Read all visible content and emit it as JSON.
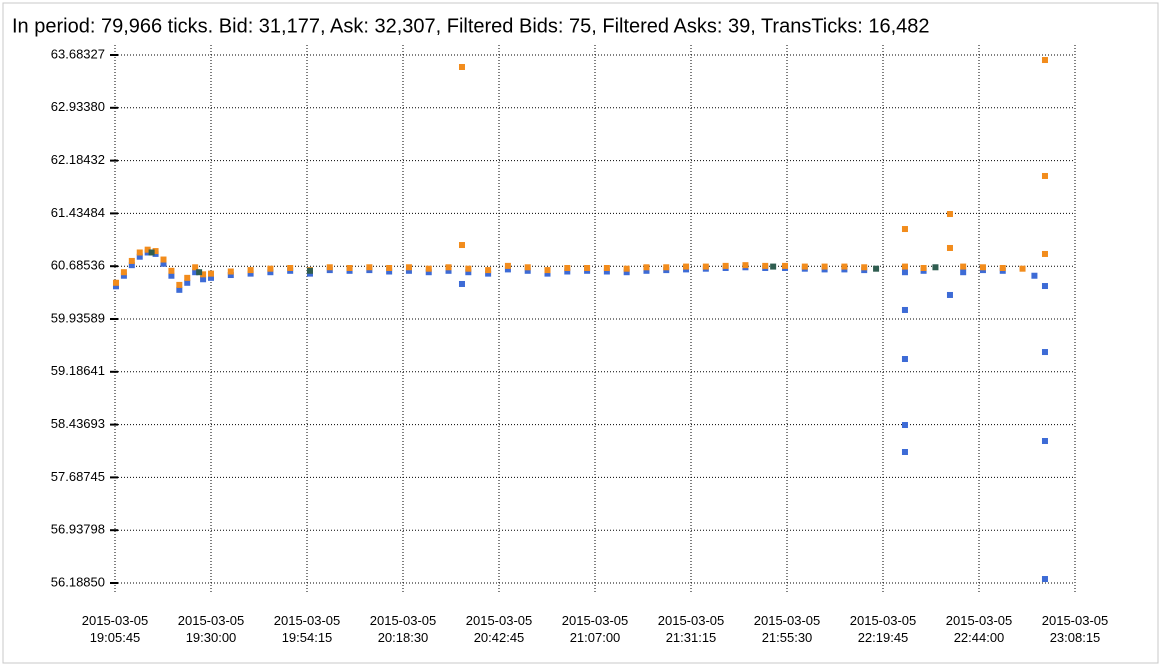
{
  "chart_data": {
    "type": "scatter",
    "title": "In period: 79,966 ticks. Bid: 31,177, Ask: 32,307, Filtered Bids: 75, Filtered Asks: 39, TransTicks: 16,482",
    "xlim": [
      "2015-03-05 19:05:45",
      "2015-03-05 23:08:15"
    ],
    "xticks": [
      "2015-03-05 19:05:45",
      "2015-03-05 19:30:00",
      "2015-03-05 19:54:15",
      "2015-03-05 20:18:30",
      "2015-03-05 20:42:45",
      "2015-03-05 21:07:00",
      "2015-03-05 21:31:15",
      "2015-03-05 21:55:30",
      "2015-03-05 22:19:45",
      "2015-03-05 22:44:00",
      "2015-03-05 23:08:15"
    ],
    "ylim": [
      56.1885,
      63.68327
    ],
    "yticks": [
      {
        "value": 56.1885,
        "label": "56.18850"
      },
      56.93798,
      57.68745,
      58.43693,
      59.18641,
      59.93589,
      60.68536,
      61.43484,
      62.18432,
      {
        "value": 62.9338,
        "label": "62.93380"
      },
      63.68327
    ],
    "grid": true,
    "series": [
      {
        "color": "#3d6bd6",
        "x": [
          "2015-03-05 19:06:00",
          "2015-03-05 19:08:00",
          "2015-03-05 19:10:00",
          "2015-03-05 19:12:00",
          "2015-03-05 19:14:00",
          "2015-03-05 19:16:00",
          "2015-03-05 19:18:00",
          "2015-03-05 19:20:00",
          "2015-03-05 19:22:00",
          "2015-03-05 19:24:00",
          "2015-03-05 19:26:00",
          "2015-03-05 19:28:00",
          "2015-03-05 19:30:00",
          "2015-03-05 19:35:00",
          "2015-03-05 19:40:00",
          "2015-03-05 19:45:00",
          "2015-03-05 19:50:00",
          "2015-03-05 19:55:00",
          "2015-03-05 20:00:00",
          "2015-03-05 20:05:00",
          "2015-03-05 20:10:00",
          "2015-03-05 20:15:00",
          "2015-03-05 20:20:00",
          "2015-03-05 20:25:00",
          "2015-03-05 20:30:00",
          "2015-03-05 20:33:24",
          "2015-03-05 20:35:00",
          "2015-03-05 20:40:00",
          "2015-03-05 20:45:00",
          "2015-03-05 20:50:00",
          "2015-03-05 20:55:00",
          "2015-03-05 21:00:00",
          "2015-03-05 21:05:00",
          "2015-03-05 21:10:00",
          "2015-03-05 21:15:00",
          "2015-03-05 21:20:00",
          "2015-03-05 21:25:00",
          "2015-03-05 21:30:00",
          "2015-03-05 21:35:00",
          "2015-03-05 21:40:00",
          "2015-03-05 21:45:00",
          "2015-03-05 21:50:00",
          "2015-03-05 21:55:00",
          "2015-03-05 22:00:00",
          "2015-03-05 22:05:00",
          "2015-03-05 22:10:00",
          "2015-03-05 22:15:00",
          "2015-03-05 22:25:18",
          "2015-03-05 22:25:18",
          "2015-03-05 22:25:18",
          "2015-03-05 22:25:18",
          "2015-03-05 22:25:18",
          "2015-03-05 22:30:00",
          "2015-03-05 22:36:40",
          "2015-03-05 22:40:00",
          "2015-03-05 22:45:00",
          "2015-03-05 22:50:00",
          "2015-03-05 22:58:00",
          "2015-03-05 23:00:40",
          "2015-03-05 23:00:40",
          "2015-03-05 23:00:40",
          "2015-03-05 23:00:40"
        ],
        "values": [
          60.4,
          60.55,
          60.7,
          60.82,
          60.88,
          60.86,
          60.72,
          60.55,
          60.35,
          60.45,
          60.6,
          60.5,
          60.52,
          60.56,
          60.58,
          60.6,
          60.62,
          60.58,
          60.63,
          60.62,
          60.63,
          60.61,
          60.62,
          60.6,
          60.62,
          60.433,
          60.6,
          60.58,
          60.64,
          60.62,
          60.58,
          60.61,
          60.62,
          60.61,
          60.6,
          60.62,
          60.63,
          60.64,
          60.65,
          60.66,
          60.67,
          60.66,
          60.66,
          60.65,
          60.64,
          60.64,
          60.63,
          60.6,
          60.064,
          59.368,
          58.431,
          58.048,
          60.62,
          60.277,
          60.6,
          60.63,
          60.62,
          60.55,
          60.404,
          59.467,
          58.204,
          56.245
        ]
      },
      {
        "color": "#f28c1c",
        "x": [
          "2015-03-05 19:06:00",
          "2015-03-05 19:08:00",
          "2015-03-05 19:10:00",
          "2015-03-05 19:12:00",
          "2015-03-05 19:14:00",
          "2015-03-05 19:16:00",
          "2015-03-05 19:18:00",
          "2015-03-05 19:20:00",
          "2015-03-05 19:22:00",
          "2015-03-05 19:24:00",
          "2015-03-05 19:26:00",
          "2015-03-05 19:28:00",
          "2015-03-05 19:30:00",
          "2015-03-05 19:35:00",
          "2015-03-05 19:40:00",
          "2015-03-05 19:45:00",
          "2015-03-05 19:50:00",
          "2015-03-05 19:55:00",
          "2015-03-05 20:00:00",
          "2015-03-05 20:05:00",
          "2015-03-05 20:10:00",
          "2015-03-05 20:15:00",
          "2015-03-05 20:20:00",
          "2015-03-05 20:25:00",
          "2015-03-05 20:30:00",
          "2015-03-05 20:33:24",
          "2015-03-05 20:33:24",
          "2015-03-05 20:35:00",
          "2015-03-05 20:40:00",
          "2015-03-05 20:45:00",
          "2015-03-05 20:50:00",
          "2015-03-05 20:55:00",
          "2015-03-05 21:00:00",
          "2015-03-05 21:05:00",
          "2015-03-05 21:10:00",
          "2015-03-05 21:15:00",
          "2015-03-05 21:20:00",
          "2015-03-05 21:25:00",
          "2015-03-05 21:30:00",
          "2015-03-05 21:35:00",
          "2015-03-05 21:40:00",
          "2015-03-05 21:45:00",
          "2015-03-05 21:50:00",
          "2015-03-05 21:55:00",
          "2015-03-05 22:00:00",
          "2015-03-05 22:05:00",
          "2015-03-05 22:10:00",
          "2015-03-05 22:15:00",
          "2015-03-05 22:25:18",
          "2015-03-05 22:25:18",
          "2015-03-05 22:30:00",
          "2015-03-05 22:36:40",
          "2015-03-05 22:36:40",
          "2015-03-05 22:40:00",
          "2015-03-05 22:45:00",
          "2015-03-05 22:50:00",
          "2015-03-05 22:55:00",
          "2015-03-05 23:00:40",
          "2015-03-05 23:00:40",
          "2015-03-05 23:00:40"
        ],
        "values": [
          60.45,
          60.6,
          60.76,
          60.88,
          60.92,
          60.9,
          60.78,
          60.62,
          60.42,
          60.52,
          60.67,
          60.57,
          60.58,
          60.61,
          60.63,
          60.65,
          60.66,
          60.63,
          60.67,
          60.66,
          60.67,
          60.66,
          60.67,
          60.65,
          60.67,
          63.513,
          60.986,
          60.65,
          60.63,
          60.69,
          60.67,
          60.63,
          60.66,
          60.66,
          60.66,
          60.65,
          60.67,
          60.67,
          60.68,
          60.68,
          60.69,
          60.7,
          60.69,
          60.69,
          60.68,
          60.68,
          60.68,
          60.67,
          61.213,
          60.68,
          60.66,
          61.426,
          60.944,
          60.68,
          60.67,
          60.66,
          60.65,
          63.612,
          61.966,
          60.859
        ]
      },
      {
        "color": "#2f5d50",
        "x": [
          "2015-03-05 19:15:00",
          "2015-03-05 19:27:00",
          "2015-03-05 19:55:00",
          "2015-03-05 21:52:00",
          "2015-03-05 22:18:00",
          "2015-03-05 22:33:00"
        ],
        "values": [
          60.88,
          60.6,
          60.62,
          60.68,
          60.65,
          60.67
        ]
      }
    ]
  }
}
